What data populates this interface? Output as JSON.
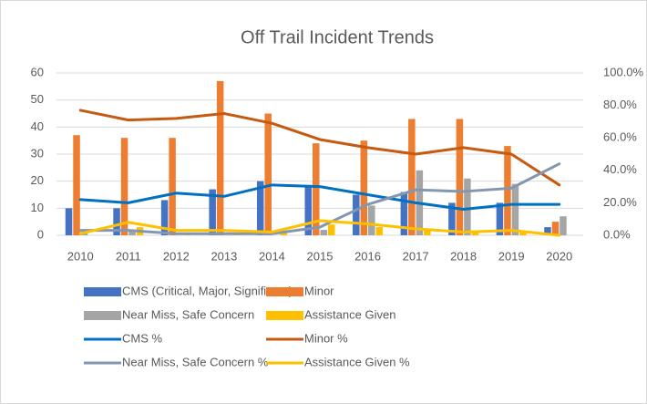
{
  "chart_data": {
    "type": "combo",
    "title": "Off Trail Incident Trends",
    "categories": [
      "2010",
      "2011",
      "2012",
      "2013",
      "2014",
      "2015",
      "2016",
      "2017",
      "2018",
      "2019",
      "2020"
    ],
    "ylim": [
      0,
      60
    ],
    "yticks": [
      0,
      10,
      20,
      30,
      40,
      50,
      60
    ],
    "y2lim": [
      0,
      100
    ],
    "y2ticks": [
      {
        "value": 0,
        "label": "0.0%"
      },
      {
        "value": 20,
        "label": "20.0%"
      },
      {
        "value": 40,
        "label": "40.0%"
      },
      {
        "value": 60,
        "label": "60.0%"
      },
      {
        "value": 80,
        "label": "80.0%"
      },
      {
        "value": 100,
        "label": "100.0%"
      }
    ],
    "grid": true,
    "series": [
      {
        "name": "CMS (Critical, Major, Significant)",
        "type": "bar",
        "color": "#4472c4",
        "values": [
          10,
          10,
          13,
          17,
          20,
          18,
          15,
          16,
          12,
          12,
          3
        ]
      },
      {
        "name": "Minor",
        "type": "bar",
        "color": "#ed7d31",
        "values": [
          37,
          36,
          36,
          57,
          45,
          34,
          35,
          43,
          43,
          33,
          5
        ]
      },
      {
        "name": "Near Miss, Safe Concern",
        "type": "bar",
        "color": "#a5a5a5",
        "values": [
          2,
          2,
          0,
          0,
          0,
          2,
          11,
          24,
          21,
          19,
          7
        ]
      },
      {
        "name": "Assistance Given",
        "type": "bar",
        "color": "#ffc000",
        "values": [
          0,
          3,
          1,
          1,
          1,
          4,
          3,
          2,
          1,
          1,
          0
        ]
      },
      {
        "name": "CMS %",
        "type": "line",
        "axis": "y2",
        "color": "#0070c0",
        "values": [
          22,
          20,
          26,
          24,
          31,
          30,
          25,
          20,
          16,
          19,
          19
        ]
      },
      {
        "name": "Minor %",
        "type": "line",
        "axis": "y2",
        "color": "#c55a11",
        "values": [
          77,
          71,
          72,
          75,
          69,
          59,
          54,
          50,
          54,
          50,
          31
        ]
      },
      {
        "name": "Near Miss, Safe Concern %",
        "type": "line",
        "axis": "y2",
        "color": "#8497b0",
        "values": [
          3,
          3,
          1,
          1,
          1,
          5,
          19,
          28,
          27,
          29,
          44
        ]
      },
      {
        "name": "Assistance Given %",
        "type": "line",
        "axis": "y2",
        "color": "#ffc000",
        "values": [
          1,
          8,
          3,
          3,
          2,
          9,
          7,
          4,
          2,
          3,
          0
        ]
      }
    ]
  }
}
